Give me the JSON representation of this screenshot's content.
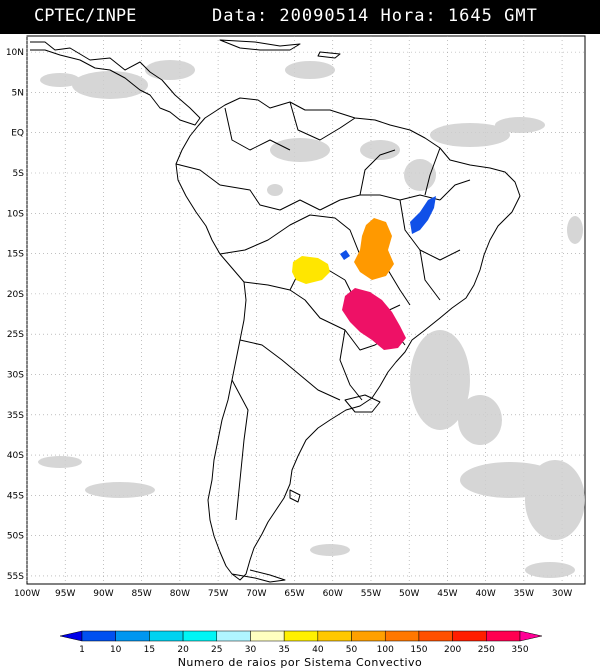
{
  "header": {
    "agency": "CPTEC/INPE",
    "datetime": "Data: 20090514 Hora: 1645 GMT"
  },
  "map": {
    "lat_labels": [
      "10N",
      "5N",
      "EQ",
      "5S",
      "10S",
      "15S",
      "20S",
      "25S",
      "30S",
      "35S",
      "40S",
      "45S",
      "50S",
      "55S"
    ],
    "lon_labels": [
      "100W",
      "95W",
      "90W",
      "85W",
      "80W",
      "75W",
      "70W",
      "65W",
      "60W",
      "55W",
      "50W",
      "45W",
      "40W",
      "35W",
      "30W"
    ],
    "lat_range": [
      -56,
      12
    ],
    "lon_range": [
      -100,
      -27
    ],
    "grid": "dotted"
  },
  "colorbar": {
    "labels": [
      "1",
      "10",
      "15",
      "20",
      "25",
      "30",
      "35",
      "40",
      "50",
      "100",
      "150",
      "200",
      "250",
      "350"
    ],
    "colors": [
      "#0000e8",
      "#0050f0",
      "#0096f0",
      "#00d2f0",
      "#00f5f5",
      "#b0f5ff",
      "#ffffc0",
      "#fff000",
      "#ffc800",
      "#ffa000",
      "#ff7800",
      "#ff5000",
      "#ff1e00",
      "#ff0050",
      "#ff0096"
    ],
    "title": "Numero de raios por Sistema Convectivo"
  },
  "systems": [
    {
      "name": "yellow-system",
      "color": "#ffe600"
    },
    {
      "name": "orange-system",
      "color": "#ff9900"
    },
    {
      "name": "magenta-system",
      "color": "#ee1166"
    },
    {
      "name": "blue-system",
      "color": "#1050e8"
    }
  ]
}
